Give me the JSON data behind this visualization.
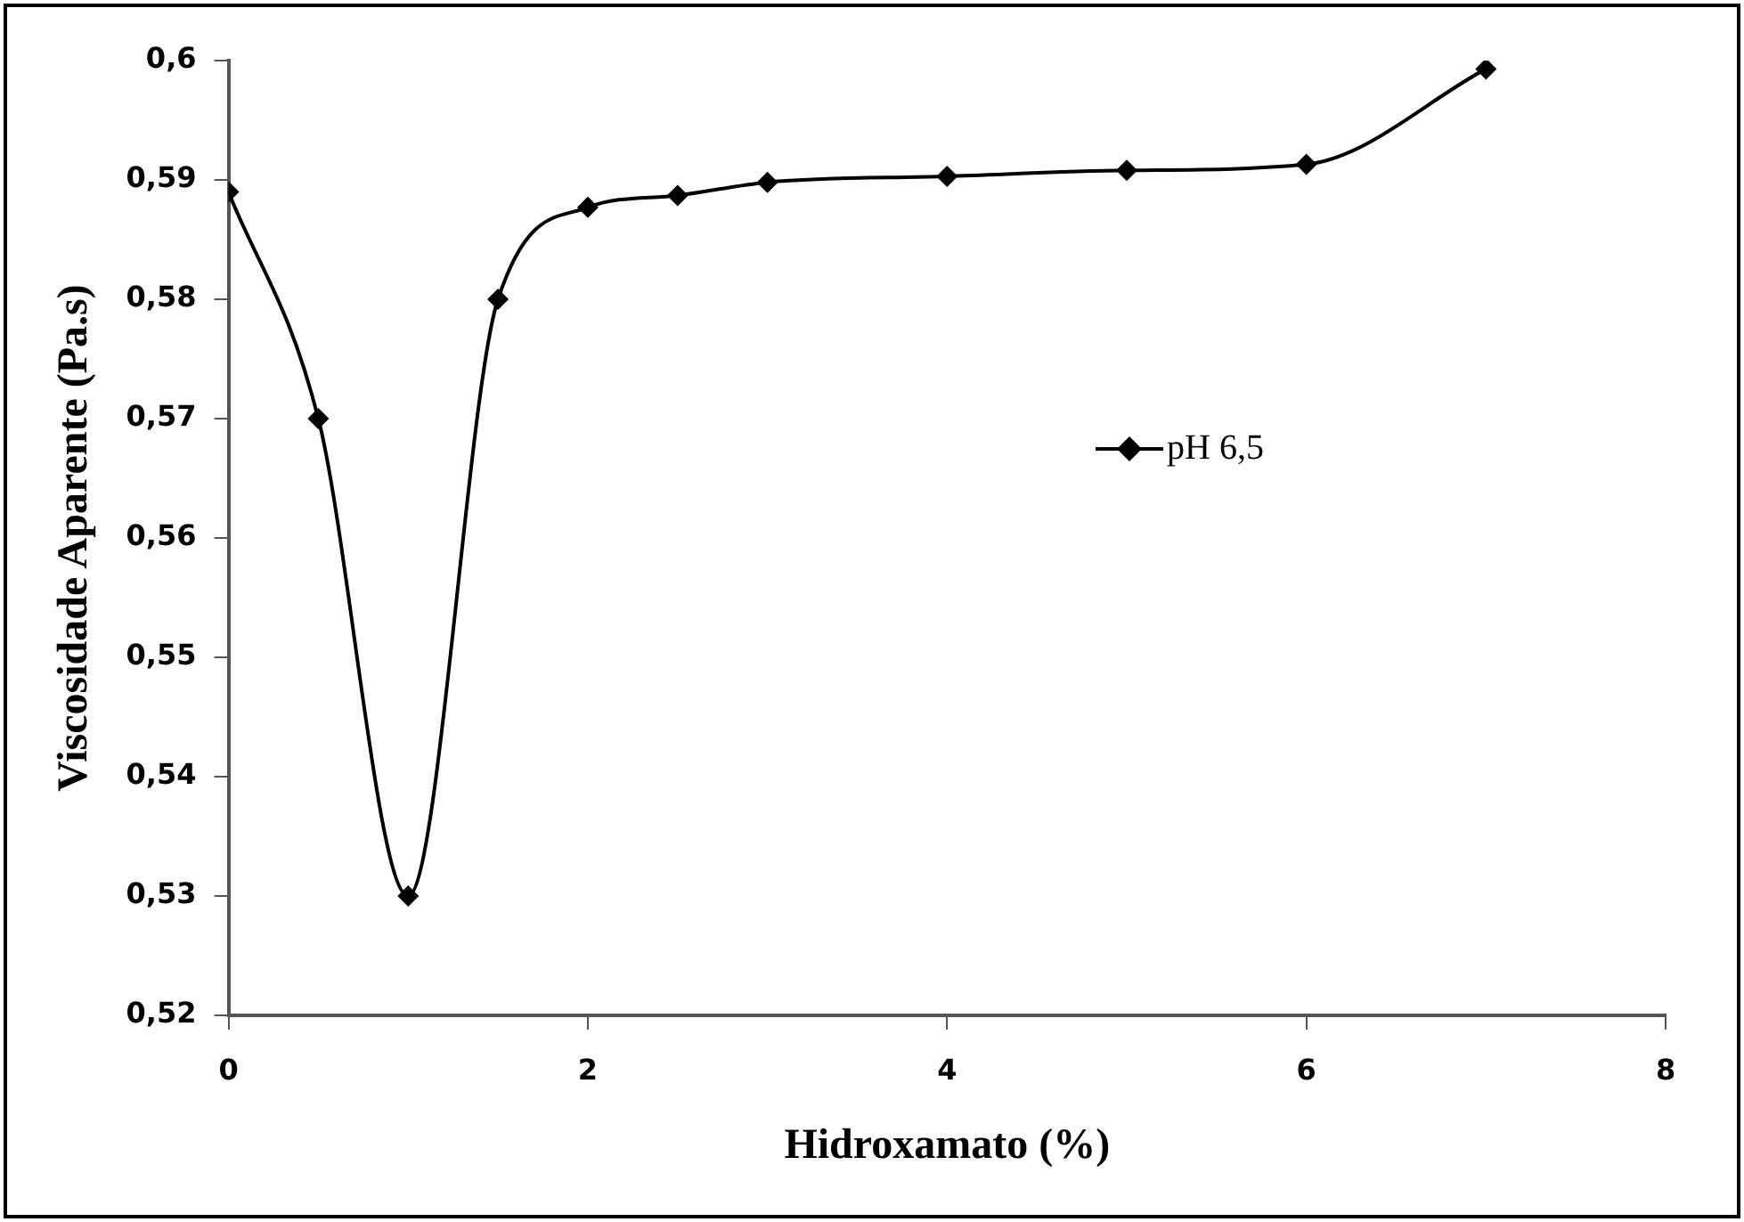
{
  "chart_data": {
    "type": "line",
    "xlabel": "Hidroxamato (%)",
    "ylabel": "Viscosidade Aparente (Pa.s)",
    "x": [
      0,
      0.5,
      1,
      1.5,
      2,
      2.5,
      3,
      4,
      5,
      6,
      7
    ],
    "series": [
      {
        "name": "pH 6,5",
        "color": "#000000",
        "values": [
          0.589,
          0.57,
          0.53,
          0.58,
          0.5877,
          0.5887,
          0.5898,
          0.5903,
          0.5908,
          0.5913,
          0.5993
        ]
      }
    ],
    "xlim": [
      0,
      8
    ],
    "xticks": [
      0,
      2,
      4,
      6,
      8
    ],
    "ylim": [
      0.52,
      0.6
    ],
    "yticks": [
      {
        "value": 0.52,
        "label": "0,52"
      },
      {
        "value": 0.53,
        "label": "0,53"
      },
      {
        "value": 0.54,
        "label": "0,54"
      },
      {
        "value": 0.55,
        "label": "0,55"
      },
      {
        "value": 0.56,
        "label": "0,56"
      },
      {
        "value": 0.57,
        "label": "0,57"
      },
      {
        "value": 0.58,
        "label": "0,58"
      },
      {
        "value": 0.59,
        "label": "0,59"
      },
      {
        "value": 0.6,
        "label": "0,6"
      }
    ],
    "grid": false,
    "legend": "right",
    "marker": "diamond",
    "line_style": "solid"
  }
}
